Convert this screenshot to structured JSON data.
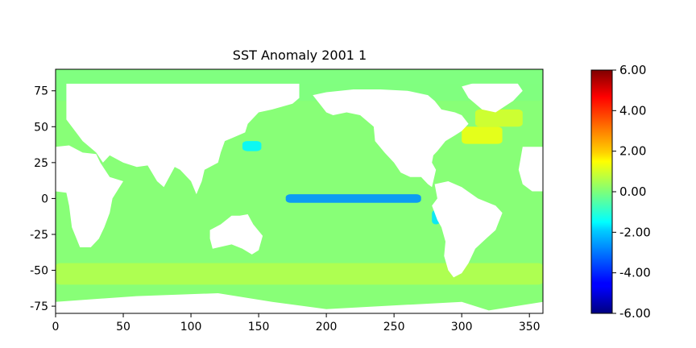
{
  "chart_data": {
    "type": "heatmap",
    "title": "SST Anomaly 2001 1",
    "xlabel": "",
    "ylabel": "",
    "xlim": [
      0,
      360
    ],
    "ylim": [
      -80,
      90
    ],
    "x_ticks": [
      0,
      50,
      100,
      150,
      200,
      250,
      300,
      350
    ],
    "y_ticks": [
      75,
      50,
      25,
      0,
      -25,
      -50,
      -75
    ],
    "colorbar": {
      "colormap": "jet",
      "range": [
        -6.0,
        6.0
      ],
      "ticks": [
        "6.00",
        "4.00",
        "2.00",
        "0.00",
        "-2.00",
        "-4.00",
        "-6.00"
      ],
      "tick_values": [
        6,
        4,
        2,
        0,
        -2,
        -4,
        -6
      ]
    },
    "land_color": "#ffffff",
    "grid": false,
    "features": [
      {
        "region": "equatorial Pacific cold tongue",
        "lon_range": [
          170,
          270
        ],
        "lat_range": [
          -3,
          3
        ],
        "anomaly": -2.8
      },
      {
        "region": "NW Pacific Kuroshio",
        "lon_range": [
          138,
          152
        ],
        "lat_range": [
          33,
          40
        ],
        "anomaly": -1.6
      },
      {
        "region": "Peru coast",
        "lon_range": [
          278,
          284
        ],
        "lat_range": [
          -18,
          -8
        ],
        "anomaly": -1.8
      },
      {
        "region": "NW Atlantic Gulf Stream",
        "lon_range": [
          300,
          330
        ],
        "lat_range": [
          38,
          50
        ],
        "anomaly": 1.3
      },
      {
        "region": "Labrador / Davis region",
        "lon_range": [
          310,
          345
        ],
        "lat_range": [
          50,
          62
        ],
        "anomaly": 1.0
      },
      {
        "region": "Southern Ocean band",
        "lon_range": [
          0,
          360
        ],
        "lat_range": [
          -60,
          -45
        ],
        "anomaly": 0.6
      },
      {
        "region": "Arctic / ice",
        "lon_range": [
          0,
          360
        ],
        "lat_range": [
          68,
          90
        ],
        "anomaly": 0.0
      }
    ]
  }
}
